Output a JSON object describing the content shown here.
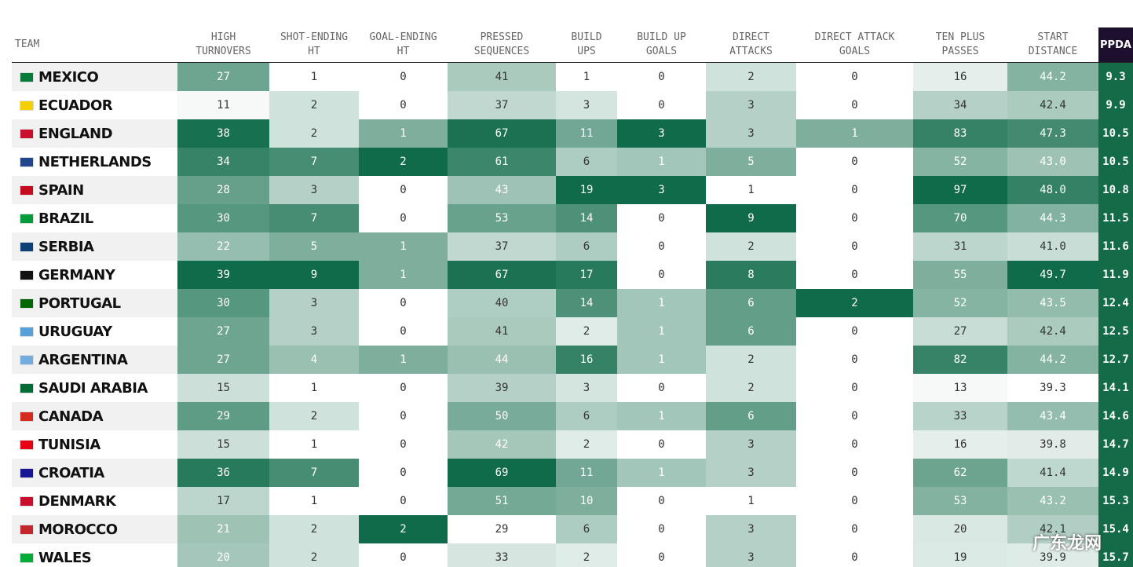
{
  "table": {
    "columns": [
      [
        "TEAM"
      ],
      [
        "HIGH",
        "TURNOVERS"
      ],
      [
        "SHOT-ENDING",
        "HT"
      ],
      [
        "GOAL-ENDING",
        "HT"
      ],
      [
        "PRESSED",
        "SEQUENCES"
      ],
      [
        "BUILD",
        "UPS"
      ],
      [
        "BUILD UP",
        "GOALS"
      ],
      [
        "DIRECT",
        "ATTACKS"
      ],
      [
        "DIRECT ATTACK",
        "GOALS"
      ],
      [
        "TEN PLUS",
        "PASSES"
      ],
      [
        "START",
        "DISTANCE"
      ],
      [
        "PPDA"
      ]
    ],
    "rows": [
      [
        "MEXICO",
        "27",
        "1",
        "0",
        "41",
        "1",
        "0",
        "2",
        "0",
        "16",
        "44.2",
        "9.3"
      ],
      [
        "ECUADOR",
        "11",
        "2",
        "0",
        "37",
        "3",
        "0",
        "3",
        "0",
        "34",
        "42.4",
        "9.9"
      ],
      [
        "ENGLAND",
        "38",
        "2",
        "1",
        "67",
        "11",
        "3",
        "3",
        "1",
        "83",
        "47.3",
        "10.5"
      ],
      [
        "NETHERLANDS",
        "34",
        "7",
        "2",
        "61",
        "6",
        "1",
        "5",
        "0",
        "52",
        "43.0",
        "10.5"
      ],
      [
        "SPAIN",
        "28",
        "3",
        "0",
        "43",
        "19",
        "3",
        "1",
        "0",
        "97",
        "48.0",
        "10.8"
      ],
      [
        "BRAZIL",
        "30",
        "7",
        "0",
        "53",
        "14",
        "0",
        "9",
        "0",
        "70",
        "44.3",
        "11.5"
      ],
      [
        "SERBIA",
        "22",
        "5",
        "1",
        "37",
        "6",
        "0",
        "2",
        "0",
        "31",
        "41.0",
        "11.6"
      ],
      [
        "GERMANY",
        "39",
        "9",
        "1",
        "67",
        "17",
        "0",
        "8",
        "0",
        "55",
        "49.7",
        "11.9"
      ],
      [
        "PORTUGAL",
        "30",
        "3",
        "0",
        "40",
        "14",
        "1",
        "6",
        "2",
        "52",
        "43.5",
        "12.4"
      ],
      [
        "URUGUAY",
        "27",
        "3",
        "0",
        "41",
        "2",
        "1",
        "6",
        "0",
        "27",
        "42.4",
        "12.5"
      ],
      [
        "ARGENTINA",
        "27",
        "4",
        "1",
        "44",
        "16",
        "1",
        "2",
        "0",
        "82",
        "44.2",
        "12.7"
      ],
      [
        "SAUDI ARABIA",
        "15",
        "1",
        "0",
        "39",
        "3",
        "0",
        "2",
        "0",
        "13",
        "39.3",
        "14.1"
      ],
      [
        "CANADA",
        "29",
        "2",
        "0",
        "50",
        "6",
        "1",
        "6",
        "0",
        "33",
        "43.4",
        "14.6"
      ],
      [
        "TUNISIA",
        "15",
        "1",
        "0",
        "42",
        "2",
        "0",
        "3",
        "0",
        "16",
        "39.8",
        "14.7"
      ],
      [
        "CROATIA",
        "36",
        "7",
        "0",
        "69",
        "11",
        "1",
        "3",
        "0",
        "62",
        "41.4",
        "14.9"
      ],
      [
        "DENMARK",
        "17",
        "1",
        "0",
        "51",
        "10",
        "0",
        "1",
        "0",
        "53",
        "43.2",
        "15.3"
      ],
      [
        "MOROCCO",
        "21",
        "2",
        "2",
        "29",
        "6",
        "0",
        "3",
        "0",
        "20",
        "42.1",
        "15.4"
      ],
      [
        "WALES",
        "20",
        "2",
        "0",
        "33",
        "2",
        "0",
        "3",
        "0",
        "19",
        "39.9",
        "15.7"
      ]
    ]
  },
  "watermark": "广东龙网"
}
